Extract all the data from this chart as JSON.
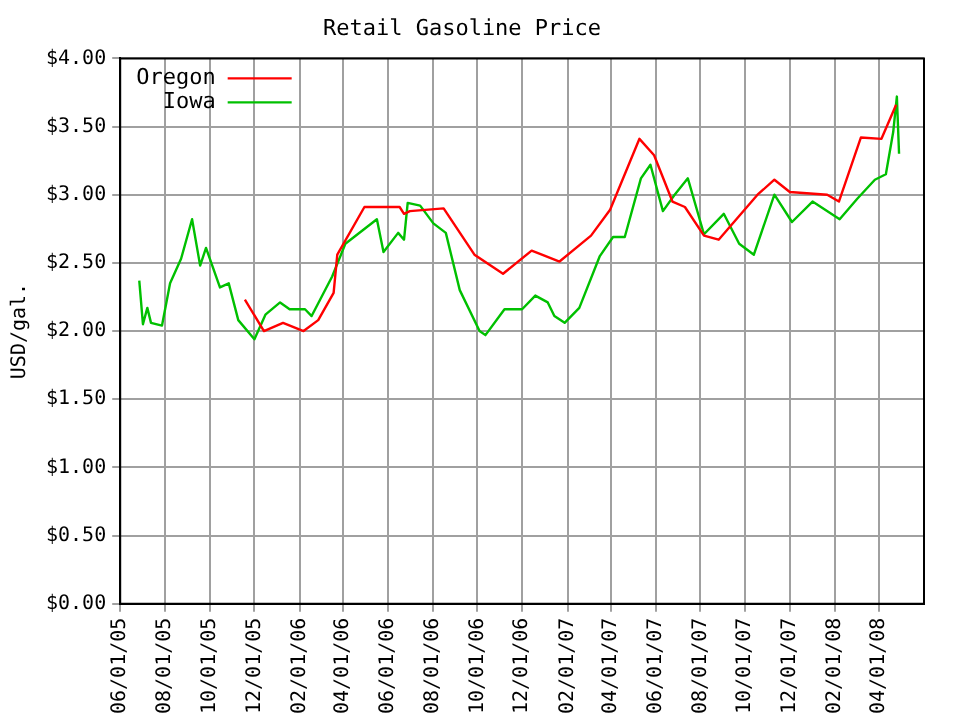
{
  "chart_data": {
    "type": "line",
    "title": "Retail Gasoline Price",
    "ylabel": "USD/gal.",
    "xlim": [
      "2005-06-01",
      "2008-06-01"
    ],
    "xticks": [
      {
        "value": "2005-06-01",
        "label": "06/01/05"
      },
      {
        "value": "2005-08-01",
        "label": "08/01/05"
      },
      {
        "value": "2005-10-01",
        "label": "10/01/05"
      },
      {
        "value": "2005-12-01",
        "label": "12/01/05"
      },
      {
        "value": "2006-02-01",
        "label": "02/01/06"
      },
      {
        "value": "2006-04-01",
        "label": "04/01/06"
      },
      {
        "value": "2006-06-01",
        "label": "06/01/06"
      },
      {
        "value": "2006-08-01",
        "label": "08/01/06"
      },
      {
        "value": "2006-10-01",
        "label": "10/01/06"
      },
      {
        "value": "2006-12-01",
        "label": "12/01/06"
      },
      {
        "value": "2007-02-01",
        "label": "02/01/07"
      },
      {
        "value": "2007-04-01",
        "label": "04/01/07"
      },
      {
        "value": "2007-06-01",
        "label": "06/01/07"
      },
      {
        "value": "2007-08-01",
        "label": "08/01/07"
      },
      {
        "value": "2007-10-01",
        "label": "10/01/07"
      },
      {
        "value": "2007-12-01",
        "label": "12/01/07"
      },
      {
        "value": "2008-02-01",
        "label": "02/01/08"
      },
      {
        "value": "2008-04-01",
        "label": "04/01/08"
      }
    ],
    "ylim": [
      0,
      4
    ],
    "yticks": [
      {
        "value": 0,
        "label": "$0.00"
      },
      {
        "value": 0.5,
        "label": "$0.50"
      },
      {
        "value": 1,
        "label": "$1.00"
      },
      {
        "value": 1.5,
        "label": "$1.50"
      },
      {
        "value": 2,
        "label": "$2.00"
      },
      {
        "value": 2.5,
        "label": "$2.50"
      },
      {
        "value": 3,
        "label": "$3.00"
      },
      {
        "value": 3.5,
        "label": "$3.50"
      },
      {
        "value": 4,
        "label": "$4.00"
      }
    ],
    "grid": true,
    "legend": "top left",
    "marker": "none",
    "line_style": "solid",
    "series": [
      {
        "name": "Oregon",
        "color": "#ff0000",
        "x": [
          "2005-11-18",
          "2005-12-14",
          "2006-01-09",
          "2006-02-06",
          "2006-02-26",
          "2006-03-19",
          "2006-03-24",
          "2006-04-30",
          "2006-06-17",
          "2006-06-23",
          "2006-07-01",
          "2006-08-16",
          "2006-09-27",
          "2006-11-05",
          "2006-12-14",
          "2007-01-21",
          "2007-03-05",
          "2007-03-31",
          "2007-05-10",
          "2007-05-30",
          "2007-06-24",
          "2007-07-11",
          "2007-08-06",
          "2007-08-26",
          "2007-10-18",
          "2007-11-10",
          "2007-12-01",
          "2008-01-21",
          "2008-02-06",
          "2008-03-07",
          "2008-04-04",
          "2008-04-24"
        ],
        "values": [
          2.23,
          2.0,
          2.06,
          2.0,
          2.08,
          2.28,
          2.56,
          2.91,
          2.91,
          2.86,
          2.88,
          2.9,
          2.56,
          2.42,
          2.59,
          2.51,
          2.7,
          2.89,
          3.41,
          3.29,
          2.95,
          2.91,
          2.7,
          2.67,
          3.0,
          3.11,
          3.02,
          3.0,
          2.95,
          3.42,
          3.41,
          3.66
        ]
      },
      {
        "name": "Iowa",
        "color": "#00c000",
        "x": [
          "2005-06-27",
          "2005-07-02",
          "2005-07-08",
          "2005-07-13",
          "2005-07-28",
          "2005-08-08",
          "2005-08-23",
          "2005-09-07",
          "2005-09-18",
          "2005-09-26",
          "2005-10-15",
          "2005-10-27",
          "2005-11-09",
          "2005-12-01",
          "2005-12-16",
          "2006-01-05",
          "2006-01-18",
          "2006-02-08",
          "2006-02-17",
          "2006-03-17",
          "2006-04-04",
          "2006-05-17",
          "2006-05-26",
          "2006-06-15",
          "2006-06-23",
          "2006-06-28",
          "2006-07-15",
          "2006-08-02",
          "2006-08-19",
          "2006-09-07",
          "2006-10-04",
          "2006-10-12",
          "2006-11-07",
          "2006-12-01",
          "2006-12-19",
          "2007-01-05",
          "2007-01-14",
          "2007-01-28",
          "2007-02-17",
          "2007-03-17",
          "2007-04-04",
          "2007-04-20",
          "2007-05-12",
          "2007-05-25",
          "2007-06-11",
          "2007-06-27",
          "2007-07-15",
          "2007-08-06",
          "2007-09-02",
          "2007-09-23",
          "2007-10-13",
          "2007-11-10",
          "2007-12-04",
          "2008-01-01",
          "2008-02-07",
          "2008-03-02",
          "2008-03-26",
          "2008-04-10",
          "2008-04-20",
          "2008-04-25",
          "2008-04-28"
        ],
        "values": [
          2.37,
          2.05,
          2.17,
          2.06,
          2.04,
          2.35,
          2.53,
          2.82,
          2.48,
          2.61,
          2.32,
          2.35,
          2.08,
          1.94,
          2.12,
          2.21,
          2.16,
          2.16,
          2.11,
          2.4,
          2.64,
          2.82,
          2.58,
          2.72,
          2.67,
          2.94,
          2.92,
          2.79,
          2.72,
          2.3,
          2.0,
          1.97,
          2.16,
          2.16,
          2.26,
          2.21,
          2.11,
          2.06,
          2.17,
          2.55,
          2.69,
          2.69,
          3.12,
          3.22,
          2.88,
          3.0,
          3.12,
          2.71,
          2.86,
          2.64,
          2.56,
          3.0,
          2.8,
          2.95,
          2.82,
          2.97,
          3.11,
          3.15,
          3.46,
          3.72,
          3.3
        ]
      }
    ]
  }
}
